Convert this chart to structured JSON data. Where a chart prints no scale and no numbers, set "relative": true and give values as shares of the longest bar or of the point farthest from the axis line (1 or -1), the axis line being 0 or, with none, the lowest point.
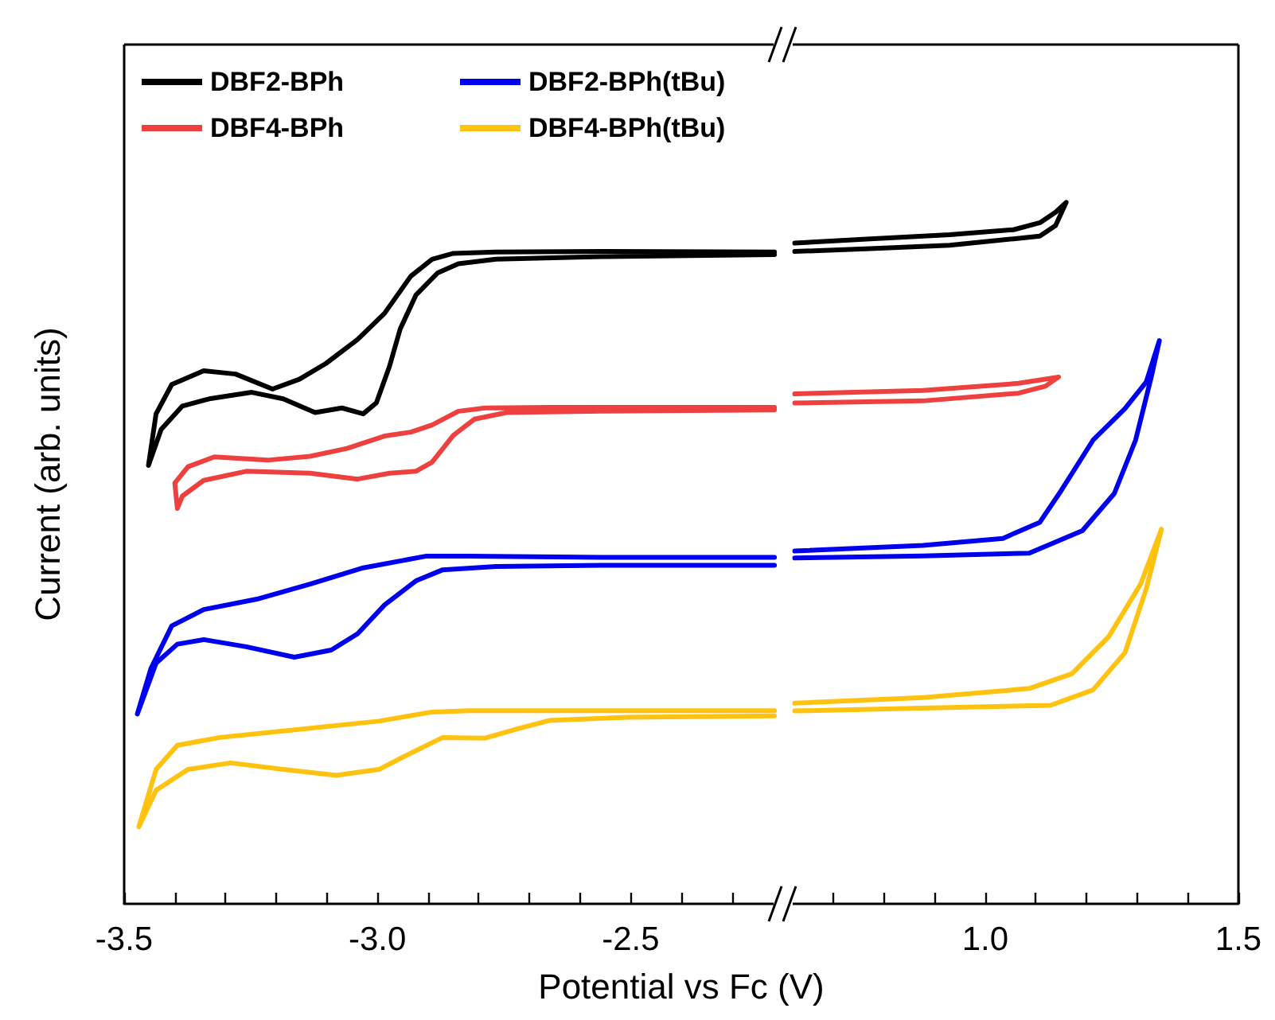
{
  "chart_data": [
    {
      "type": "line",
      "relative": true,
      "xlabel": "Potential vs Fc (V)",
      "ylabel": "Current (arb. units)",
      "legend": "top left",
      "xlim": [
        -3.5,
        -2.2
      ],
      "xticks": [
        {
          "value": -3.5,
          "label": "-3.5"
        },
        {
          "value": -3.4,
          "label": null
        },
        {
          "value": -3.3,
          "label": null
        },
        {
          "value": -3.2,
          "label": null
        },
        {
          "value": -3.1,
          "label": null
        },
        {
          "value": -3.0,
          "label": "-3.0"
        },
        {
          "value": -2.9,
          "label": null
        },
        {
          "value": -2.8,
          "label": null
        },
        {
          "value": -2.7,
          "label": null
        },
        {
          "value": -2.6,
          "label": null
        },
        {
          "value": -2.5,
          "label": "-2.5"
        },
        {
          "value": -2.4,
          "label": null
        },
        {
          "value": -2.3,
          "label": null
        }
      ],
      "series": [
        {
          "name": "DBF2-BPh",
          "color": "#000000",
          "x": [
            -2.216,
            -2.557,
            -2.766,
            -2.85,
            -2.892,
            -2.934,
            -2.986,
            -3.039,
            -3.102,
            -3.154,
            -3.207,
            -3.28,
            -3.343,
            -3.406,
            -3.437,
            -3.452,
            -3.427,
            -3.385,
            -3.332,
            -3.248,
            -3.186,
            -3.123,
            -3.07,
            -3.028,
            -3.002,
            -2.976,
            -2.955,
            -2.924,
            -2.881,
            -2.84,
            -2.766,
            -2.557,
            -2.216
          ],
          "values": [
            0.999,
            1,
            0.999,
            0.997,
            0.988,
            0.962,
            0.905,
            0.865,
            0.828,
            0.804,
            0.789,
            0.812,
            0.817,
            0.796,
            0.751,
            0.672,
            0.727,
            0.763,
            0.774,
            0.784,
            0.774,
            0.753,
            0.76,
            0.751,
            0.768,
            0.824,
            0.881,
            0.933,
            0.967,
            0.981,
            0.988,
            0.992,
            0.995
          ]
        },
        {
          "name": "DBF4-BPh",
          "color": "#ef4040",
          "x": [
            -2.216,
            -2.661,
            -2.787,
            -2.84,
            -2.892,
            -2.934,
            -2.986,
            -3.06,
            -3.133,
            -3.217,
            -3.322,
            -3.374,
            -3.4,
            -3.395,
            -3.385,
            -3.343,
            -3.259,
            -3.133,
            -3.039,
            -2.976,
            -2.924,
            -2.892,
            -2.85,
            -2.808,
            -2.745,
            -2.557,
            -2.216
          ],
          "values": [
            0.761,
            0.761,
            0.76,
            0.755,
            0.734,
            0.723,
            0.717,
            0.698,
            0.686,
            0.68,
            0.685,
            0.67,
            0.645,
            0.606,
            0.625,
            0.649,
            0.663,
            0.66,
            0.651,
            0.66,
            0.663,
            0.677,
            0.718,
            0.743,
            0.753,
            0.755,
            0.757
          ]
        },
        {
          "name": "DBF2-BPh(tBu)",
          "color": "#0000f0",
          "x": [
            -2.216,
            -2.557,
            -2.819,
            -2.903,
            -3.028,
            -3.133,
            -3.238,
            -3.343,
            -3.406,
            -3.447,
            -3.474,
            -3.437,
            -3.395,
            -3.343,
            -3.259,
            -3.164,
            -3.091,
            -3.039,
            -2.986,
            -2.924,
            -2.871,
            -2.766,
            -2.557,
            -2.216
          ],
          "values": [
            0.531,
            0.531,
            0.533,
            0.533,
            0.515,
            0.49,
            0.467,
            0.451,
            0.426,
            0.361,
            0.291,
            0.369,
            0.398,
            0.405,
            0.394,
            0.378,
            0.389,
            0.414,
            0.458,
            0.495,
            0.512,
            0.517,
            0.519,
            0.519
          ]
        },
        {
          "name": "DBF4-BPh(tBu)",
          "color": "#ffc20e",
          "x": [
            -2.216,
            -2.557,
            -2.819,
            -2.892,
            -2.997,
            -3.186,
            -3.311,
            -3.395,
            -3.437,
            -3.471,
            -3.437,
            -3.374,
            -3.29,
            -3.186,
            -3.081,
            -2.997,
            -2.934,
            -2.871,
            -2.787,
            -2.724,
            -2.661,
            -2.504,
            -2.216
          ],
          "values": [
            0.296,
            0.296,
            0.296,
            0.294,
            0.28,
            0.265,
            0.255,
            0.243,
            0.206,
            0.118,
            0.174,
            0.206,
            0.216,
            0.206,
            0.197,
            0.206,
            0.231,
            0.255,
            0.254,
            0.268,
            0.281,
            0.286,
            0.288
          ]
        }
      ]
    },
    {
      "type": "line",
      "relative": true,
      "xlim": [
        0.6,
        1.5
      ],
      "xticks": [
        {
          "value": 0.7,
          "label": null
        },
        {
          "value": 0.8,
          "label": null
        },
        {
          "value": 0.9,
          "label": null
        },
        {
          "value": 1.0,
          "label": "1.0"
        },
        {
          "value": 1.1,
          "label": null
        },
        {
          "value": 1.2,
          "label": null
        },
        {
          "value": 1.3,
          "label": null
        },
        {
          "value": 1.4,
          "label": null
        },
        {
          "value": 1.5,
          "label": "1.5"
        }
      ],
      "series": [
        {
          "color": "#000000",
          "x": [
            0.624,
            0.773,
            0.93,
            1.056,
            1.108,
            1.139,
            1.16,
            1.139,
            1.108,
            1.056,
            0.93,
            0.773,
            0.624
          ],
          "values": [
            0.942,
            0.948,
            0.954,
            0.961,
            0.971,
            0.986,
            1,
            0.967,
            0.952,
            0.948,
            0.939,
            0.934,
            0.93
          ]
        },
        {
          "color": "#ef4040",
          "x": [
            0.624,
            0.877,
            1.066,
            1.119,
            1.145,
            1.119,
            1.066,
            0.877,
            0.624
          ],
          "values": [
            0.727,
            0.732,
            0.742,
            0.748,
            0.751,
            0.738,
            0.728,
            0.717,
            0.714
          ]
        },
        {
          "color": "#0000f0",
          "x": [
            0.624,
            0.877,
            1.035,
            1.108,
            1.15,
            1.213,
            1.276,
            1.318,
            1.344,
            1.328,
            1.297,
            1.255,
            1.192,
            1.087,
            0.877,
            0.624
          ],
          "values": [
            0.503,
            0.511,
            0.521,
            0.544,
            0.589,
            0.661,
            0.706,
            0.744,
            0.803,
            0.751,
            0.661,
            0.585,
            0.532,
            0.5,
            0.496,
            0.493
          ]
        },
        {
          "color": "#ffc20e",
          "x": [
            0.624,
            0.877,
            1.087,
            1.171,
            1.244,
            1.307,
            1.348,
            1.318,
            1.276,
            1.213,
            1.129,
            0.877,
            0.624
          ],
          "values": [
            0.286,
            0.294,
            0.307,
            0.328,
            0.381,
            0.456,
            0.534,
            0.449,
            0.358,
            0.305,
            0.283,
            0.279,
            0.275
          ]
        }
      ]
    }
  ]
}
